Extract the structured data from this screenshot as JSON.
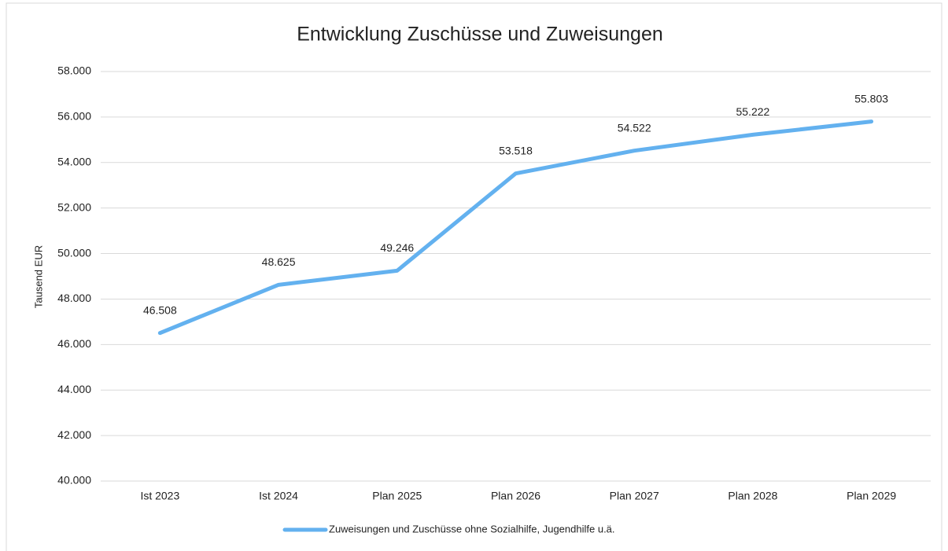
{
  "chart_data": {
    "type": "line",
    "title": "Entwicklung Zuschüsse und Zuweisungen",
    "y_label": "Tausend EUR",
    "categories": [
      "Ist 2023",
      "Ist 2024",
      "Plan 2025",
      "Plan 2026",
      "Plan 2027",
      "Plan 2028",
      "Plan 2029"
    ],
    "series": [
      {
        "name": "Zuweisungen und Zuschüsse ohne Sozialhilfe, Jugendhilfe u.ä.",
        "color": "#63b1ef",
        "values": [
          46508,
          48625,
          49246,
          53518,
          54522,
          55222,
          55803
        ],
        "value_labels": [
          "46.508",
          "48.625",
          "49.246",
          "53.518",
          "54.522",
          "55.222",
          "55.803"
        ]
      }
    ],
    "ylim": [
      40000,
      58000
    ],
    "yticks": [
      {
        "value": 40000,
        "label": "40.000"
      },
      {
        "value": 42000,
        "label": "42.000"
      },
      {
        "value": 44000,
        "label": "44.000"
      },
      {
        "value": 46000,
        "label": "46.000"
      },
      {
        "value": 48000,
        "label": "48.000"
      },
      {
        "value": 50000,
        "label": "50.000"
      },
      {
        "value": 52000,
        "label": "52.000"
      },
      {
        "value": 54000,
        "label": "54.000"
      },
      {
        "value": 56000,
        "label": "56.000"
      },
      {
        "value": 58000,
        "label": "58.000"
      }
    ],
    "grid": true,
    "legend": "bottom"
  }
}
